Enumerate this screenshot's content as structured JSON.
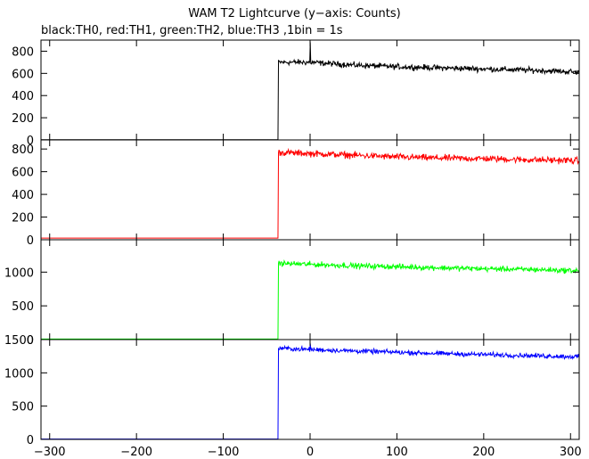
{
  "chart_data": {
    "type": "line",
    "title": "WAM T2 Lightcurve (y−axis: Counts)",
    "subtitle": "black:TH0, red:TH1, green:TH2, blue:TH3 ,1bin = 1s",
    "xlim": [
      -310,
      310
    ],
    "x_ticks": [
      -300,
      -200,
      -100,
      0,
      100,
      200,
      300
    ],
    "grid": false,
    "panels": [
      {
        "color": "#000000",
        "ylim": [
          0,
          900
        ],
        "y_ticks": [
          0,
          200,
          400,
          600,
          800
        ],
        "onset_x": -37,
        "before": 2,
        "after": [
          [
            -37,
            700
          ],
          [
            0,
            700
          ],
          [
            50,
            675
          ],
          [
            100,
            660
          ],
          [
            150,
            650
          ],
          [
            200,
            640
          ],
          [
            250,
            630
          ],
          [
            300,
            615
          ],
          [
            310,
            610
          ]
        ],
        "noise": 22,
        "spikes": [
          [
            0,
            880
          ]
        ]
      },
      {
        "color": "#ff0000",
        "ylim": [
          0,
          880
        ],
        "y_ticks": [
          0,
          200,
          400,
          600,
          800
        ],
        "onset_x": -37,
        "before": 15,
        "after": [
          [
            -37,
            770
          ],
          [
            0,
            760
          ],
          [
            50,
            745
          ],
          [
            100,
            730
          ],
          [
            150,
            720
          ],
          [
            200,
            715
          ],
          [
            250,
            705
          ],
          [
            300,
            700
          ],
          [
            310,
            695
          ]
        ],
        "noise": 25,
        "spikes": []
      },
      {
        "color": "#00ff00",
        "ylim": [
          0,
          1480
        ],
        "y_ticks": [
          0,
          500,
          1000
        ],
        "onset_x": -37,
        "before": 8,
        "after": [
          [
            -37,
            1130
          ],
          [
            0,
            1115
          ],
          [
            50,
            1095
          ],
          [
            100,
            1080
          ],
          [
            150,
            1065
          ],
          [
            200,
            1050
          ],
          [
            250,
            1040
          ],
          [
            300,
            1025
          ],
          [
            310,
            1020
          ]
        ],
        "noise": 35,
        "spikes": []
      },
      {
        "color": "#0000ff",
        "ylim": [
          0,
          1500
        ],
        "y_ticks": [
          0,
          500,
          1000,
          1500
        ],
        "onset_x": -37,
        "before": 5,
        "after": [
          [
            -37,
            1370
          ],
          [
            0,
            1350
          ],
          [
            50,
            1330
          ],
          [
            100,
            1310
          ],
          [
            150,
            1290
          ],
          [
            200,
            1275
          ],
          [
            250,
            1260
          ],
          [
            300,
            1245
          ],
          [
            310,
            1240
          ]
        ],
        "noise": 30,
        "spikes": [
          [
            0,
            1440
          ]
        ]
      }
    ]
  }
}
